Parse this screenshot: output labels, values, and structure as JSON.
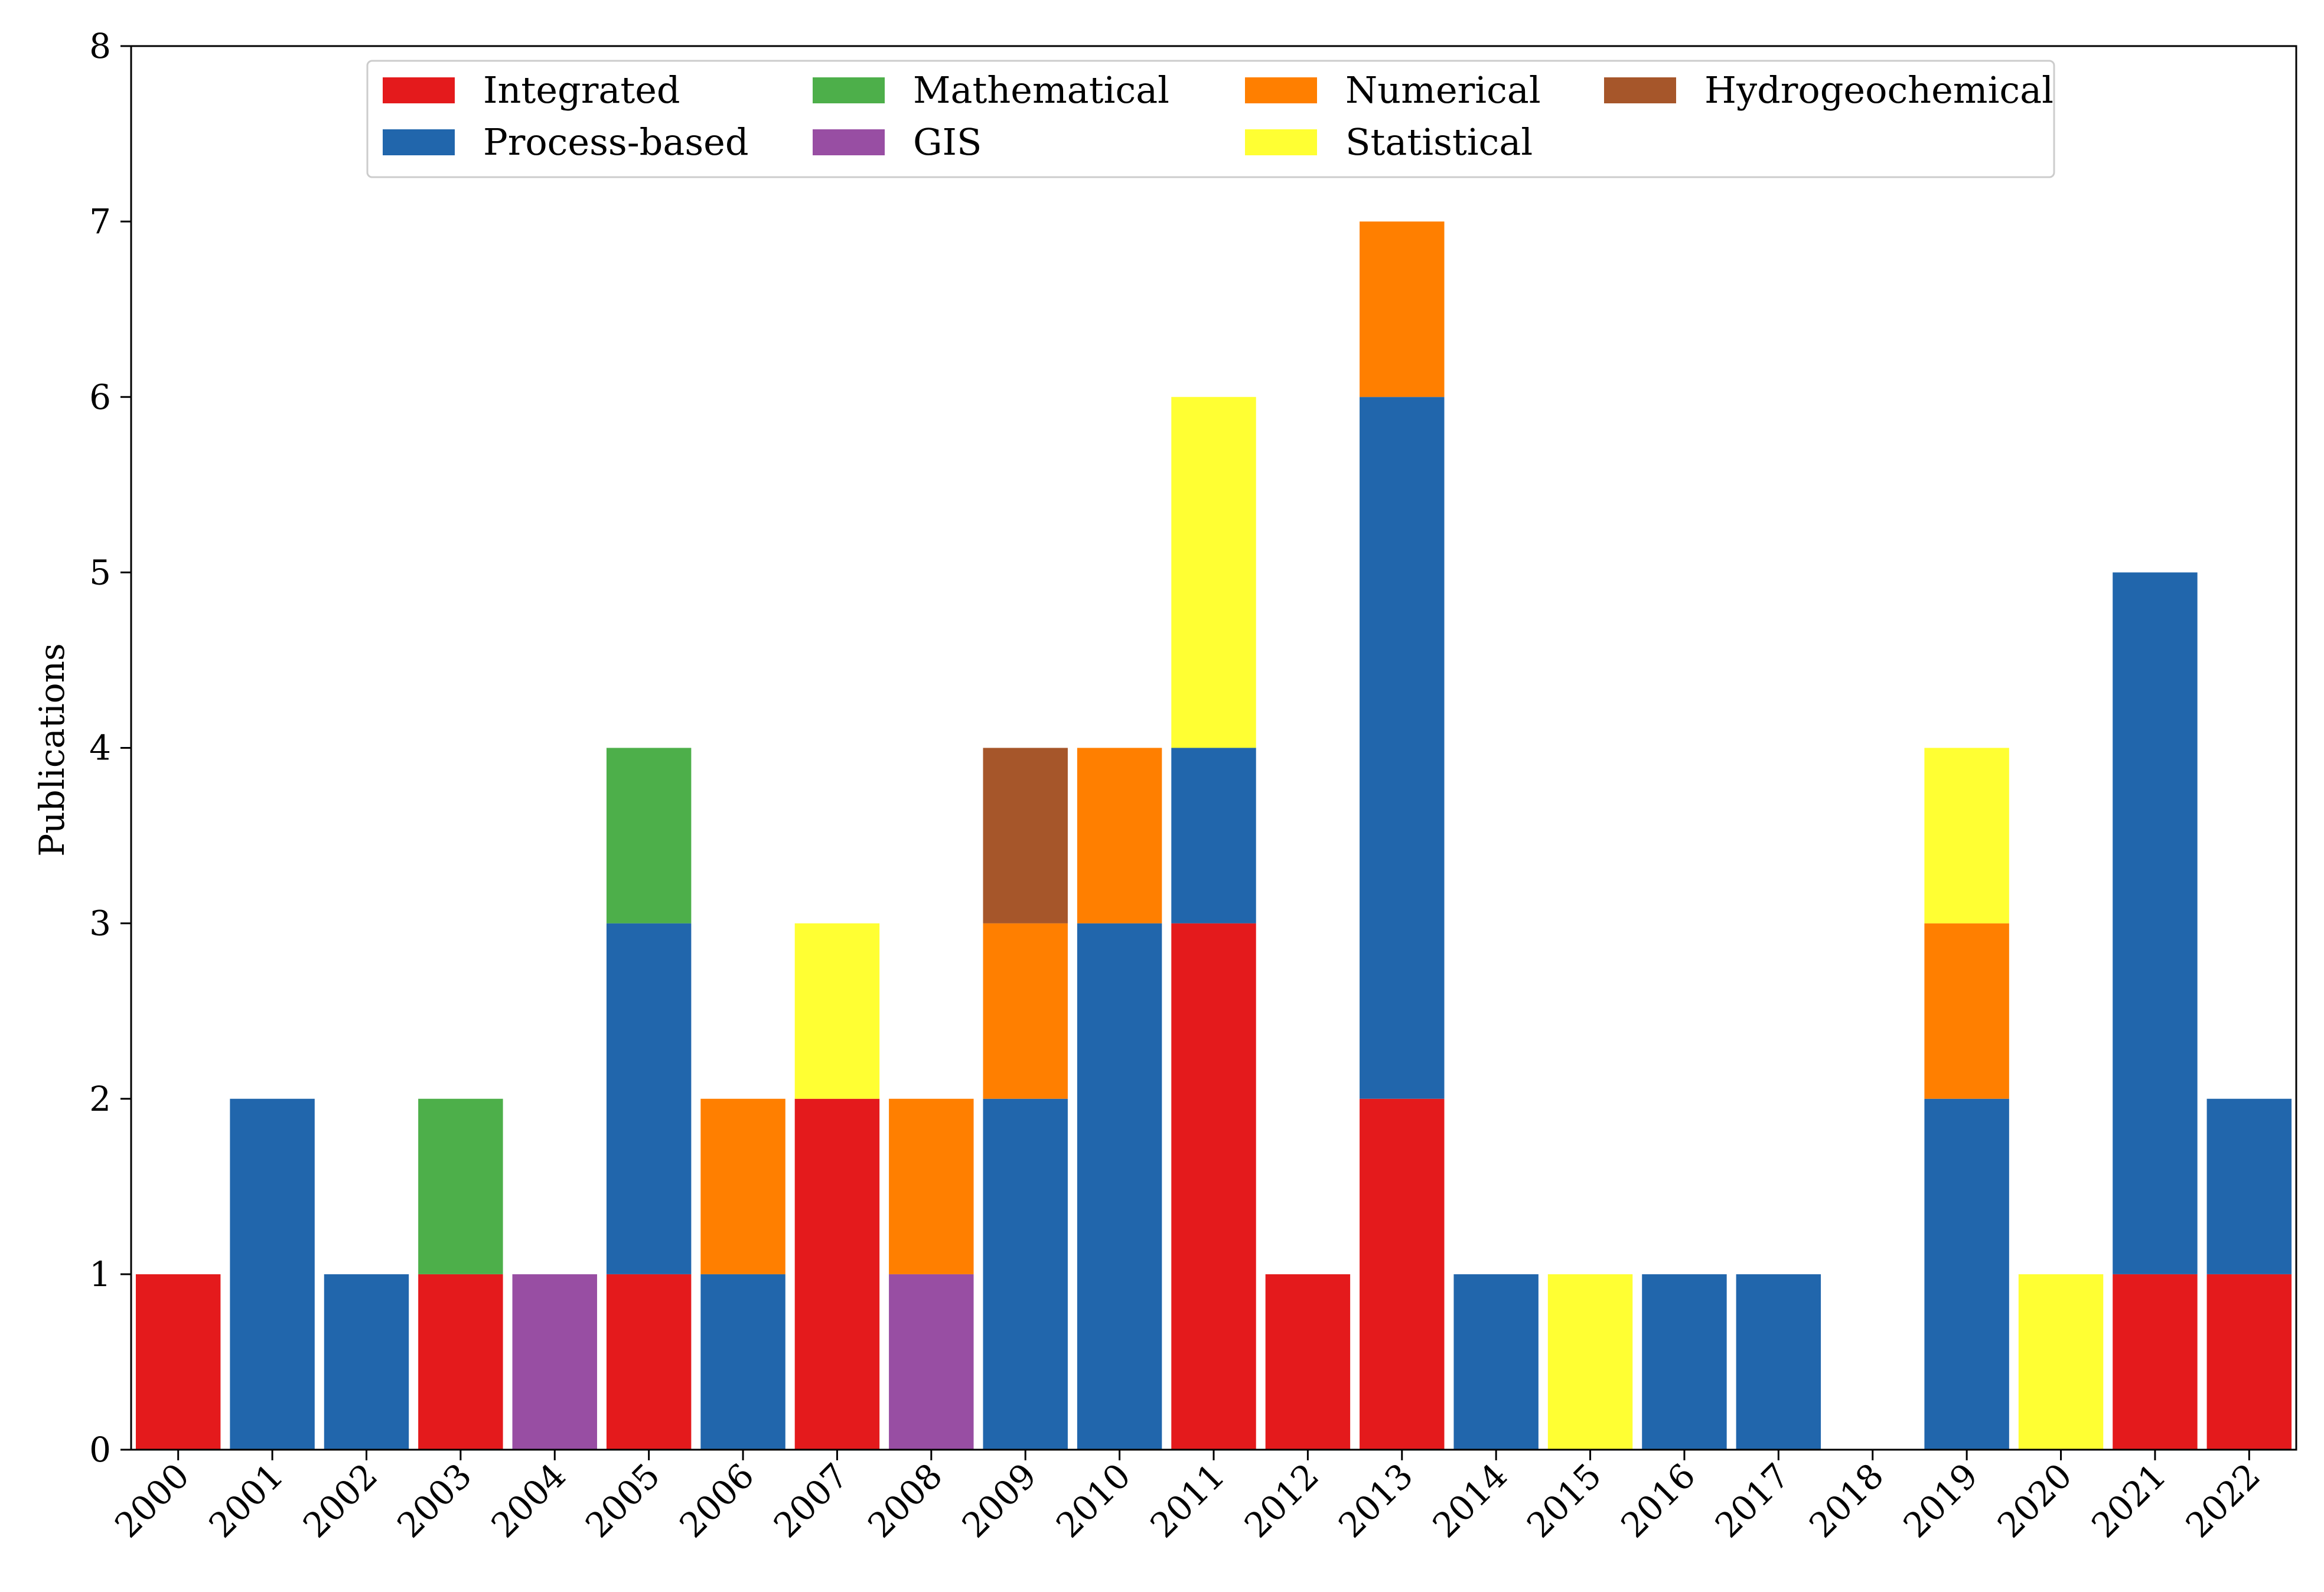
{
  "chart_data": {
    "type": "bar",
    "stacked": true,
    "title": "",
    "xlabel": "",
    "ylabel": "Publications",
    "ylim": [
      0,
      8
    ],
    "yticks": [
      0,
      1,
      2,
      3,
      4,
      5,
      6,
      7,
      8
    ],
    "grid": false,
    "legend_position": "top-center",
    "categories": [
      "2000",
      "2001",
      "2002",
      "2003",
      "2004",
      "2005",
      "2006",
      "2007",
      "2008",
      "2009",
      "2010",
      "2011",
      "2012",
      "2013",
      "2014",
      "2015",
      "2016",
      "2017",
      "2018",
      "2019",
      "2020",
      "2021",
      "2022"
    ],
    "series": [
      {
        "name": "Integrated",
        "color": "#e41a1c",
        "values": [
          1,
          0,
          0,
          1,
          0,
          1,
          0,
          2,
          0,
          0,
          0,
          3,
          1,
          2,
          0,
          0,
          0,
          0,
          0,
          0,
          0,
          1,
          1
        ]
      },
      {
        "name": "Process-based",
        "color": "#2166ac",
        "values": [
          0,
          2,
          1,
          0,
          0,
          2,
          1,
          0,
          0,
          2,
          3,
          1,
          0,
          4,
          1,
          0,
          1,
          1,
          0,
          2,
          0,
          4,
          1
        ]
      },
      {
        "name": "Mathematical",
        "color": "#4daf4a",
        "values": [
          0,
          0,
          0,
          1,
          0,
          1,
          0,
          0,
          0,
          0,
          0,
          0,
          0,
          0,
          0,
          0,
          0,
          0,
          0,
          0,
          0,
          0,
          0
        ]
      },
      {
        "name": "GIS",
        "color": "#984ea3",
        "values": [
          0,
          0,
          0,
          0,
          1,
          0,
          0,
          0,
          1,
          0,
          0,
          0,
          0,
          0,
          0,
          0,
          0,
          0,
          0,
          0,
          0,
          0,
          0
        ]
      },
      {
        "name": "Numerical",
        "color": "#ff7f00",
        "values": [
          0,
          0,
          0,
          0,
          0,
          0,
          1,
          0,
          1,
          1,
          1,
          0,
          0,
          1,
          0,
          0,
          0,
          0,
          0,
          1,
          0,
          0,
          0
        ]
      },
      {
        "name": "Statistical",
        "color": "#ffff33",
        "values": [
          0,
          0,
          0,
          0,
          0,
          0,
          0,
          1,
          0,
          0,
          0,
          2,
          0,
          0,
          0,
          1,
          0,
          0,
          0,
          1,
          1,
          0,
          0
        ]
      },
      {
        "name": "Hydrogeochemical",
        "color": "#a6562a",
        "values": [
          0,
          0,
          0,
          0,
          0,
          0,
          0,
          0,
          0,
          1,
          0,
          0,
          0,
          0,
          0,
          0,
          0,
          0,
          0,
          0,
          0,
          0,
          0
        ]
      }
    ],
    "legend_order": [
      "Integrated",
      "Process-based",
      "Mathematical",
      "GIS",
      "Numerical",
      "Statistical",
      "Hydrogeochemical"
    ]
  }
}
